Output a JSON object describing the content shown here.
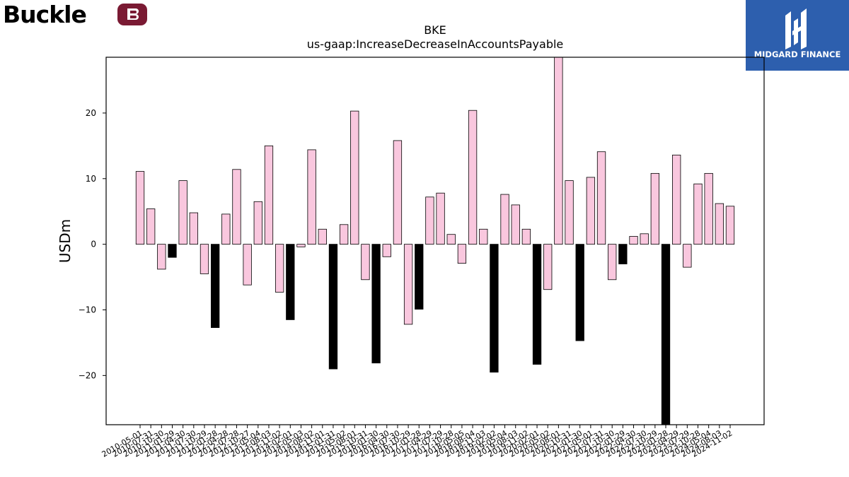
{
  "branding": {
    "company_logo_text": "Buckle",
    "badge_text": "MIDGARD FINANCE",
    "badge_color": "#2d5fae",
    "logo_color": "#000000",
    "logo_mark_color": "#7a1a33"
  },
  "chart_data": {
    "type": "bar",
    "title": "BKE",
    "subtitle": "us-gaap:IncreaseDecreaseInAccountsPayable",
    "xlabel": "",
    "ylabel": "USDm",
    "ylim": [
      -27.5,
      28.5
    ],
    "yticks": [
      -20,
      -10,
      0,
      10,
      20
    ],
    "grid": false,
    "colors": {
      "positive_period": "#f9c7de",
      "negative_period": "#000000",
      "edge": "#000000"
    },
    "categories": [
      "2010-05-01",
      "2010-07-31",
      "2010-10-30",
      "2011-01-29",
      "2011-04-30",
      "2011-07-30",
      "2011-10-29",
      "2012-01-28",
      "2012-04-28",
      "2012-07-28",
      "2012-10-27",
      "2013-05-04",
      "2013-08-03",
      "2013-11-02",
      "2014-02-01",
      "2014-05-03",
      "2014-08-02",
      "2014-11-01",
      "2015-01-31",
      "2015-05-02",
      "2015-08-01",
      "2015-10-31",
      "2016-01-30",
      "2016-04-30",
      "2016-07-30",
      "2016-10-29",
      "2017-01-28",
      "2017-04-29",
      "2017-07-29",
      "2017-10-28",
      "2018-05-05",
      "2018-08-04",
      "2018-11-03",
      "2019-02-02",
      "2019-05-04",
      "2019-08-03",
      "2019-11-02",
      "2020-02-01",
      "2020-05-02",
      "2020-08-01",
      "2020-10-31",
      "2021-01-30",
      "2021-05-01",
      "2021-07-31",
      "2021-10-30",
      "2022-01-29",
      "2022-04-30",
      "2022-07-30",
      "2022-10-29",
      "2023-01-28",
      "2023-04-29",
      "2023-07-29",
      "2023-10-28",
      "2024-05-04",
      "2024-08-03",
      "2024-11-02"
    ],
    "values": [
      11.1,
      5.4,
      -3.8,
      -2.0,
      9.7,
      4.8,
      -4.5,
      -12.7,
      4.6,
      11.4,
      -6.2,
      6.5,
      15.0,
      -7.3,
      -11.5,
      -0.4,
      14.4,
      2.3,
      -19.0,
      3.0,
      20.3,
      -5.4,
      -18.1,
      -1.9,
      15.8,
      -12.2,
      -9.9,
      7.2,
      7.8,
      1.5,
      -2.9,
      20.4,
      2.3,
      -19.5,
      7.6,
      6.0,
      2.3,
      -18.3,
      -6.9,
      29.0,
      9.7,
      -14.7,
      10.2,
      14.1,
      -5.4,
      -3.0,
      1.2,
      1.6,
      10.8,
      -29.0,
      13.6,
      -3.5,
      9.2,
      10.8,
      6.2,
      5.8
    ],
    "is_negative_period": [
      false,
      false,
      false,
      true,
      false,
      false,
      false,
      true,
      false,
      false,
      false,
      false,
      false,
      false,
      true,
      false,
      false,
      false,
      true,
      false,
      false,
      false,
      true,
      false,
      false,
      false,
      true,
      false,
      false,
      false,
      false,
      false,
      false,
      true,
      false,
      false,
      false,
      true,
      false,
      false,
      false,
      true,
      false,
      false,
      false,
      true,
      false,
      false,
      false,
      true,
      false,
      false,
      false,
      false,
      false,
      false
    ]
  }
}
